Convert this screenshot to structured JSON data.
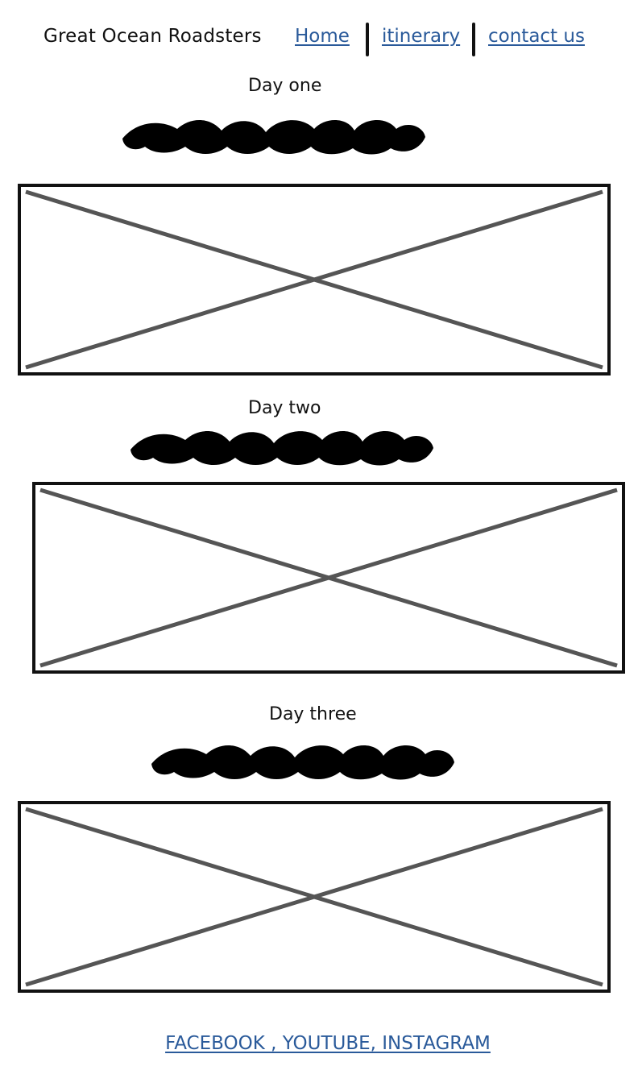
{
  "header": {
    "site_title": "Great Ocean Roadsters",
    "nav": [
      "Home",
      "itinerary",
      "contact us"
    ]
  },
  "days": [
    {
      "heading": "Day one"
    },
    {
      "heading": "Day two"
    },
    {
      "heading": "Day three"
    }
  ],
  "footer": {
    "social_links": "FACEBOOK , YOUTUBE, INSTAGRAM"
  },
  "icons": {
    "image_placeholder": "image-placeholder-icon",
    "text_scribble": "text-scribble-icon"
  },
  "colors": {
    "link": "#2a5a9a",
    "ink": "#111111",
    "placeholder_cross": "#555555"
  }
}
